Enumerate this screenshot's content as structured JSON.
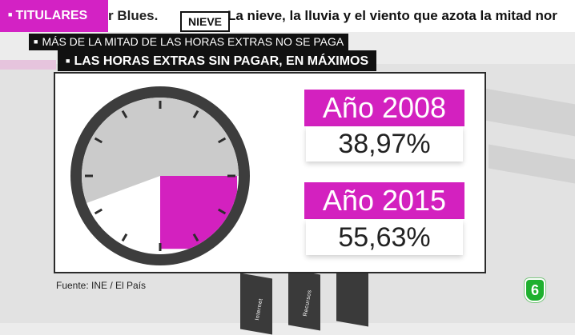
{
  "ticker": {
    "section": "TITULARES",
    "previous_text": "r Blues.",
    "tag": "NIEVE",
    "text": "La nieve, la lluvia y el viento que azota la mitad nor"
  },
  "headlines": {
    "line1": "MÁS DE LA MITAD DE LAS HORAS EXTRAS NO SE PAGA",
    "line2": "LAS HORAS EXTRAS SIN PAGAR, EN MÁXIMOS"
  },
  "chart_data": {
    "type": "pie",
    "categories": [
      "Año 2008",
      "Año 2015"
    ],
    "values": [
      38.97,
      55.63
    ],
    "value_labels": [
      "38,97%",
      "55,63%"
    ],
    "unit": "%"
  },
  "colors": {
    "magenta": "#d321bf",
    "gray": "#cbcbcb",
    "dark": "#3d3d3d",
    "logo_green": "#1fb02f"
  },
  "stats": [
    {
      "year_label": "Año 2008",
      "value_label": "38,97%"
    },
    {
      "year_label": "Año 2015",
      "value_label": "55,63%"
    }
  ],
  "source": "Fuente: INE / El País",
  "logo": {
    "label": "6",
    "icon": "lasexta-logo-icon"
  },
  "background": {
    "words": [
      "Internet",
      "Recursos"
    ]
  }
}
